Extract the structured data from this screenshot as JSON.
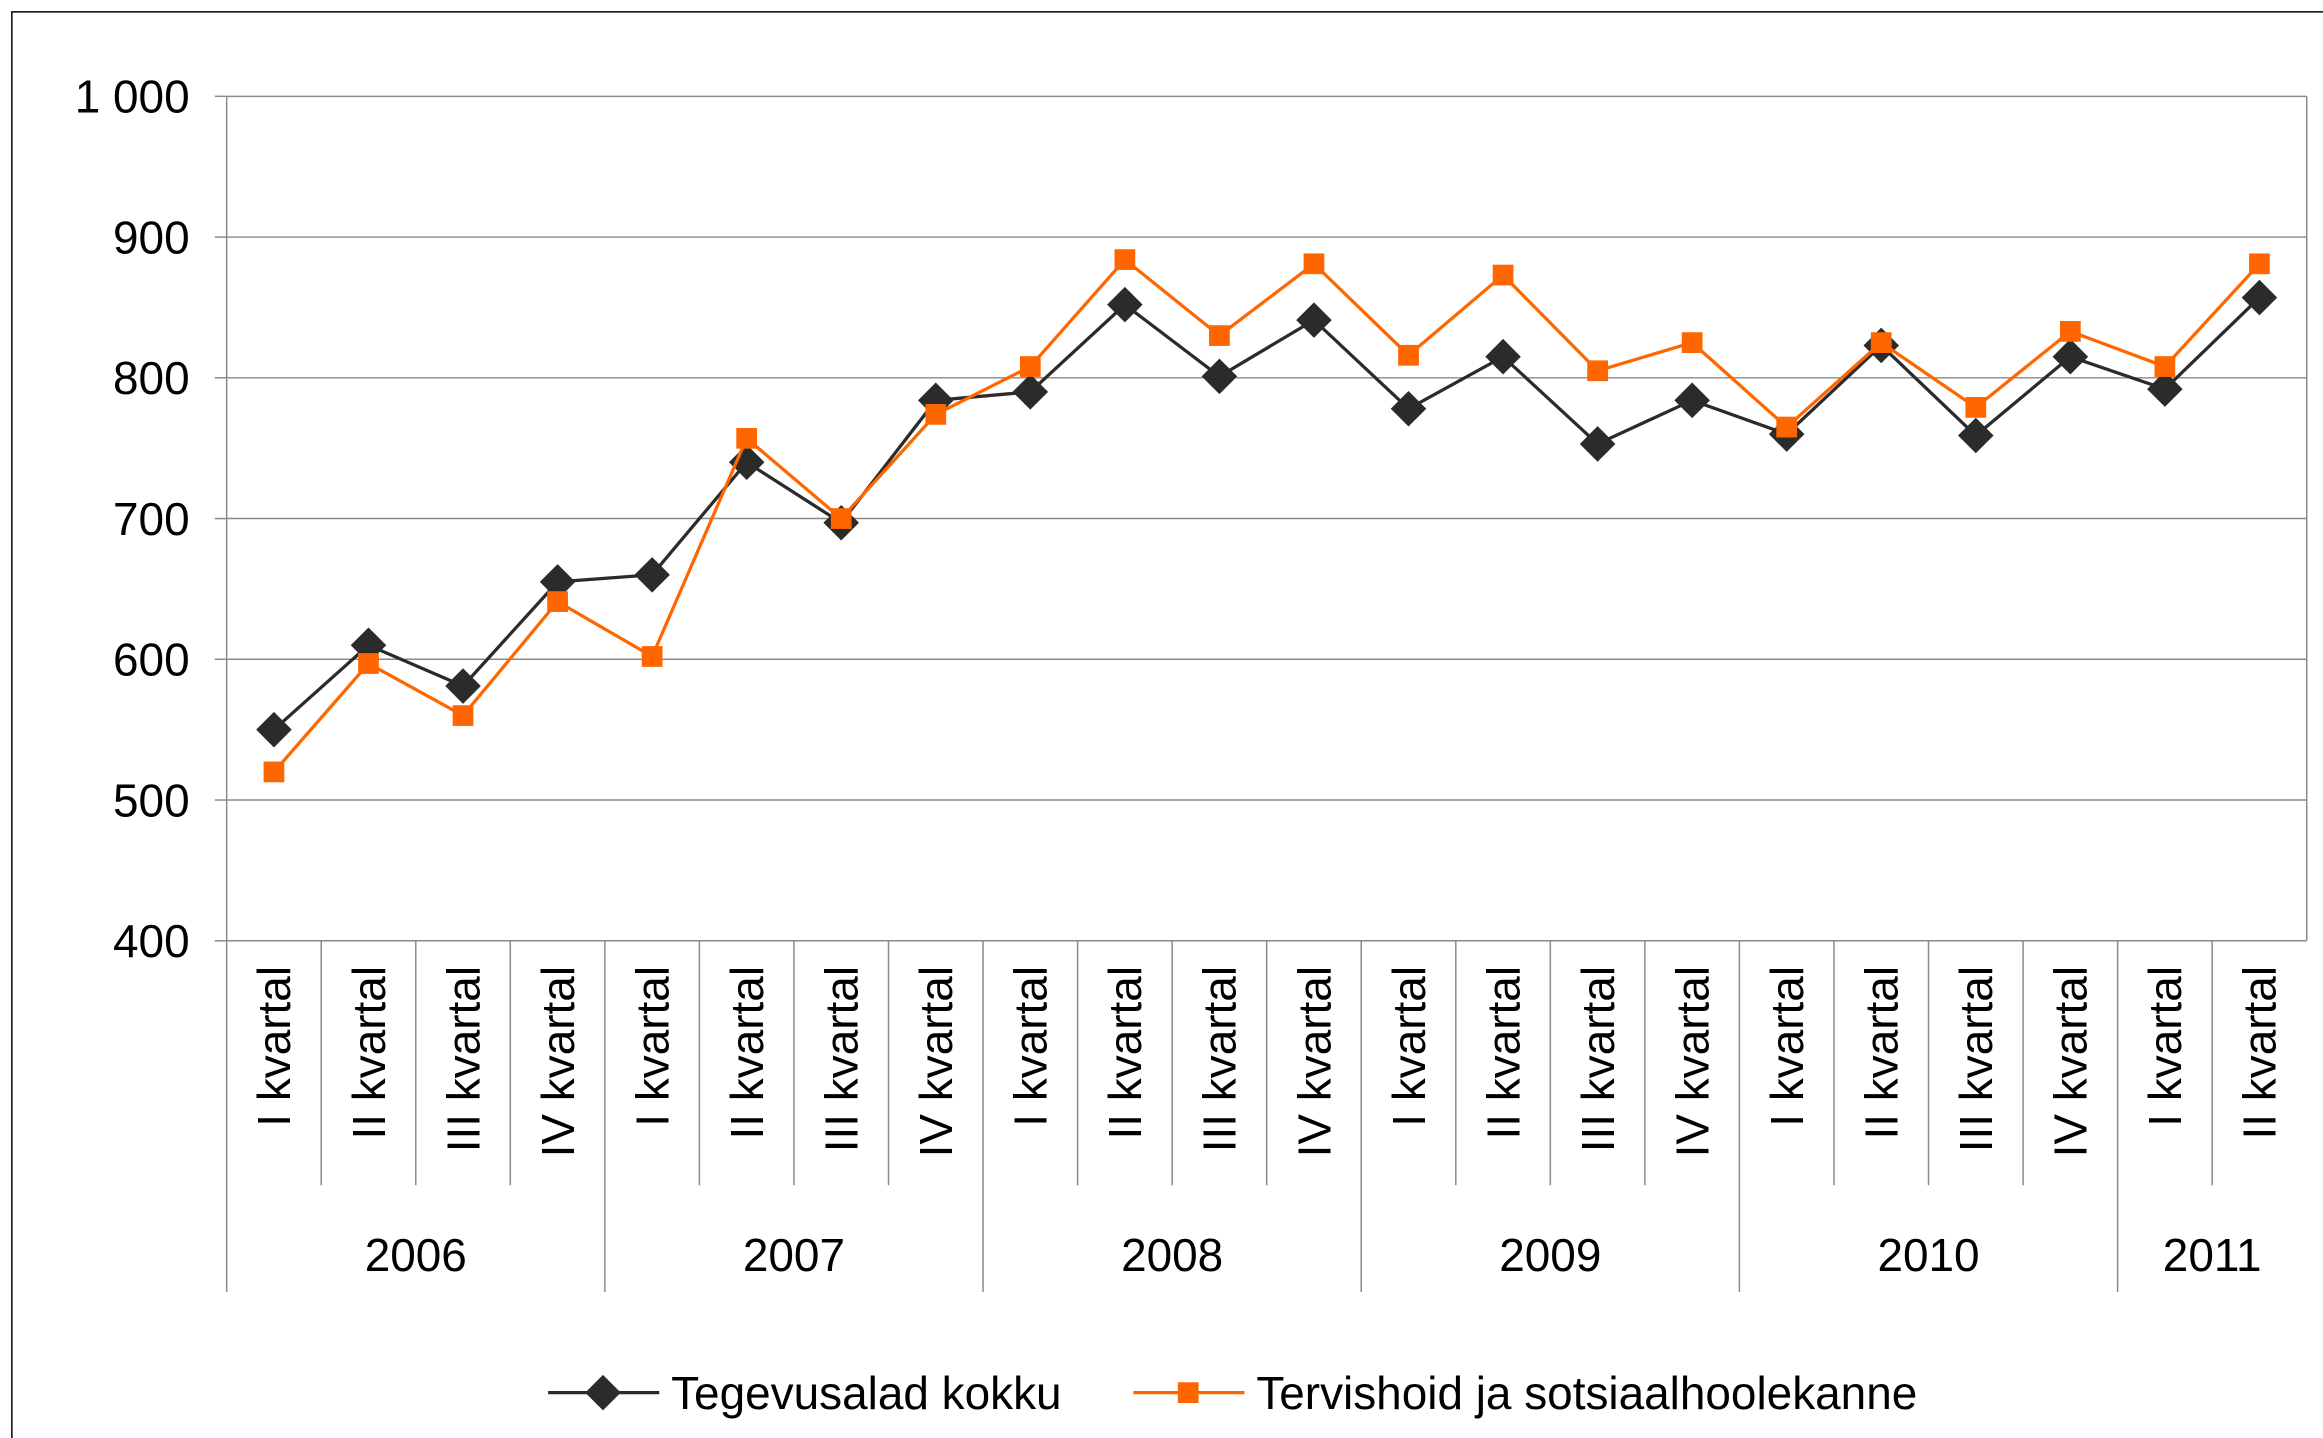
{
  "chart_data": {
    "type": "line",
    "categories": [
      "I kvartal",
      "II kvartal",
      "III kvartal",
      "IV kvartal",
      "I kvartal",
      "II kvartal",
      "III kvartal",
      "IV kvartal",
      "I kvartal",
      "II kvartal",
      "III kvartal",
      "IV kvartal",
      "I kvartal",
      "II kvartal",
      "III kvartal",
      "IV kvartal",
      "I kvartal",
      "II kvartal",
      "III kvartal",
      "IV kvartal",
      "I kvartal",
      "II kvartal"
    ],
    "years": [
      "2006",
      null,
      null,
      null,
      "2007",
      null,
      null,
      null,
      "2008",
      null,
      null,
      null,
      "2009",
      null,
      null,
      null,
      "2010",
      null,
      null,
      null,
      "2011",
      null
    ],
    "series": [
      {
        "name": "Tegevusalad kokku",
        "color": "#2b2b2b",
        "marker": "diamond",
        "values": [
          550,
          610,
          581,
          655,
          660,
          740,
          697,
          784,
          790,
          852,
          801,
          841,
          778,
          815,
          753,
          784,
          760,
          823,
          759,
          815,
          792,
          857
        ]
      },
      {
        "name": "Tervishoid ja sotsiaalhoolekanne",
        "color": "#ff6600",
        "marker": "square",
        "values": [
          520,
          597,
          560,
          641,
          602,
          757,
          700,
          774,
          808,
          884,
          830,
          881,
          816,
          873,
          805,
          825,
          765,
          825,
          779,
          833,
          808,
          881
        ]
      }
    ],
    "ylim": [
      400,
      1000
    ],
    "yticks": [
      400,
      500,
      600,
      700,
      800,
      900,
      {
        "value": 1000,
        "label": "1 000"
      }
    ],
    "grid": true,
    "legend": "bottom"
  }
}
